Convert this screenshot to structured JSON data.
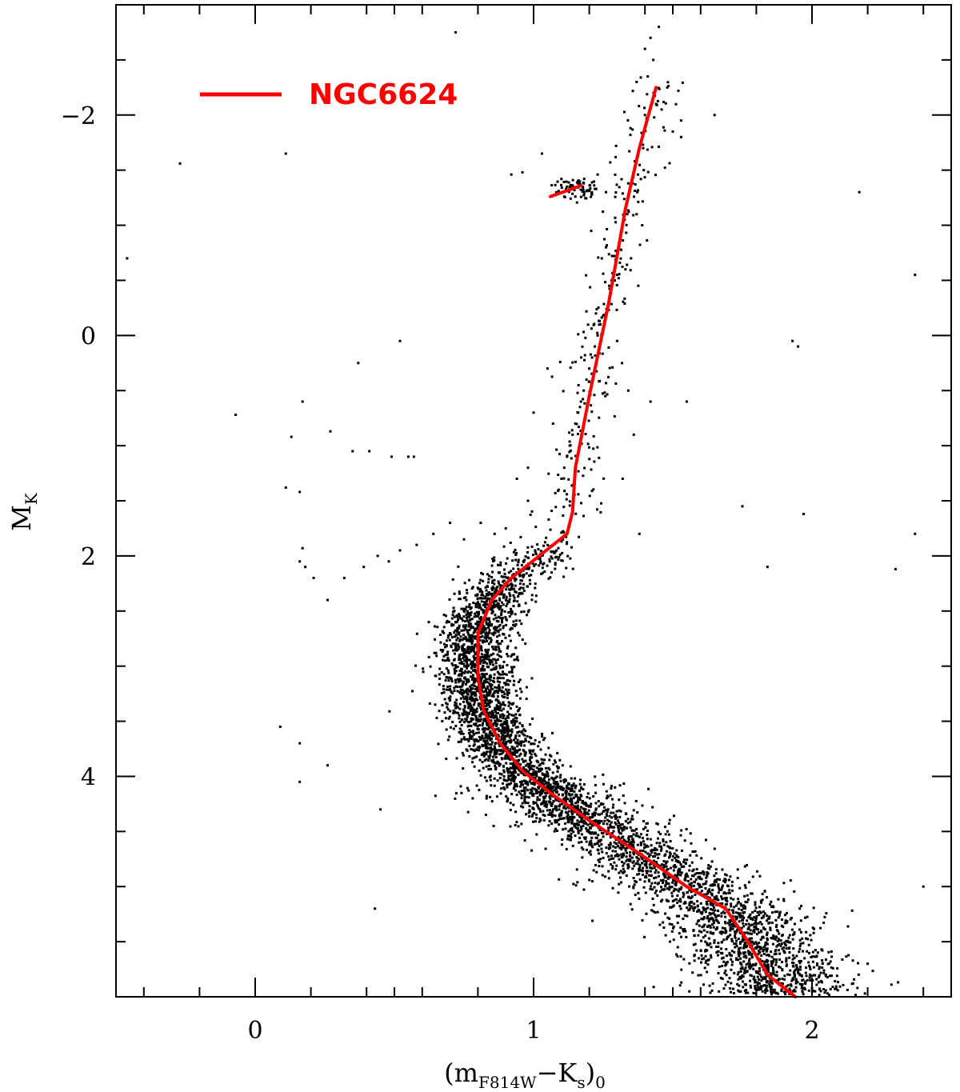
{
  "chart_data": {
    "type": "scatter",
    "title": "",
    "xlabel": {
      "main": "(m",
      "sub1": "F814W",
      "mid": "−K",
      "sub2": "s",
      "close": ")",
      "sub3": "0"
    },
    "ylabel": {
      "main": "M",
      "sub": "K"
    },
    "xlim": [
      -0.5,
      2.5
    ],
    "ylim": [
      6.0,
      -3.0
    ],
    "y_inverted": true,
    "x_ticks": [
      0,
      1,
      2
    ],
    "x_tick_labels": [
      "0",
      "1",
      "2"
    ],
    "y_ticks": [
      -2,
      0,
      2,
      4
    ],
    "y_tick_labels": [
      "−2",
      "0",
      "2",
      "4"
    ],
    "grid": false,
    "legend": {
      "position": "top-left",
      "entries": [
        {
          "name": "NGC6624",
          "color": "#ff0000"
        }
      ]
    },
    "scatter_color": "#000000",
    "scatter_description_regions": {
      "main_sequence_turnoff": {
        "x_center": 0.78,
        "y_center": 3.1
      },
      "lower_main_sequence": {
        "x_center": 1.6,
        "y_center": 5.0
      }
    },
    "series": [
      {
        "name": "NGC6624",
        "kind": "line",
        "color": "#ff0000",
        "x": [
          1.44,
          1.38,
          1.33,
          1.27,
          1.2,
          1.15,
          1.14,
          1.12,
          1.07,
          1.02,
          0.92,
          0.85,
          0.8,
          0.8,
          0.82,
          0.88,
          0.96,
          1.06,
          1.2,
          1.38,
          1.55,
          1.69,
          1.77,
          1.84,
          1.94
        ],
        "y": [
          -2.25,
          -1.7,
          -1.15,
          -0.3,
          0.55,
          1.2,
          1.6,
          1.8,
          1.9,
          2.0,
          2.2,
          2.4,
          2.7,
          3.1,
          3.4,
          3.7,
          3.95,
          4.15,
          4.4,
          4.7,
          5.0,
          5.2,
          5.5,
          5.8,
          6.0
        ]
      },
      {
        "name": "red-clump",
        "kind": "line",
        "color": "#ff0000",
        "x": [
          1.06,
          1.17
        ],
        "y": [
          -1.26,
          -1.36
        ]
      }
    ],
    "scatter_points": [
      [
        0.72,
        -2.75
      ],
      [
        1.42,
        -2.7
      ],
      [
        1.45,
        -2.8
      ],
      [
        1.4,
        -2.6
      ],
      [
        1.43,
        -2.5
      ],
      [
        1.41,
        -2.35
      ],
      [
        1.37,
        -2.3
      ],
      [
        1.44,
        -2.1
      ],
      [
        1.46,
        -2.05
      ],
      [
        1.48,
        -2.25
      ],
      [
        1.52,
        -2.22
      ],
      [
        1.5,
        -1.85
      ],
      [
        1.53,
        -1.8
      ],
      [
        1.4,
        -2.0
      ],
      [
        1.65,
        -2.0
      ],
      [
        1.53,
        -1.95
      ],
      [
        -0.27,
        -1.56
      ],
      [
        0.11,
        -1.65
      ],
      [
        0.96,
        -1.48
      ],
      [
        1.03,
        -1.65
      ],
      [
        0.92,
        -1.46
      ],
      [
        1.09,
        -1.31
      ],
      [
        1.12,
        -1.35
      ],
      [
        1.14,
        -1.34
      ],
      [
        1.16,
        -1.4
      ],
      [
        1.19,
        -1.31
      ],
      [
        1.22,
        -1.33
      ],
      [
        1.18,
        -1.38
      ],
      [
        1.1,
        -1.42
      ],
      [
        1.21,
        -1.28
      ],
      [
        1.23,
        -1.46
      ],
      [
        1.15,
        -1.26
      ],
      [
        1.11,
        -1.26
      ],
      [
        1.26,
        -1.3
      ],
      [
        1.34,
        -1.38
      ],
      [
        1.37,
        -1.1
      ],
      [
        1.39,
        -1.0
      ],
      [
        2.17,
        -1.3
      ],
      [
        1.26,
        -0.8
      ],
      [
        1.29,
        -0.72
      ],
      [
        1.31,
        -0.66
      ],
      [
        1.33,
        -0.6
      ],
      [
        1.3,
        -0.55
      ],
      [
        1.35,
        -0.7
      ],
      [
        1.25,
        -0.56
      ],
      [
        1.28,
        -0.5
      ],
      [
        -0.46,
        -0.7
      ],
      [
        2.37,
        -0.55
      ],
      [
        1.27,
        -0.3
      ],
      [
        1.24,
        -0.1
      ],
      [
        1.22,
        0.1
      ],
      [
        1.2,
        0.3
      ],
      [
        1.18,
        0.5
      ],
      [
        1.16,
        0.7
      ],
      [
        1.14,
        0.9
      ],
      [
        1.12,
        1.1
      ],
      [
        1.1,
        1.3
      ],
      [
        1.26,
        -0.2
      ],
      [
        1.23,
        0.0
      ],
      [
        1.21,
        0.2
      ],
      [
        1.19,
        0.4
      ],
      [
        1.17,
        0.6
      ],
      [
        1.15,
        0.8
      ],
      [
        1.13,
        1.0
      ],
      [
        1.11,
        1.2
      ],
      [
        1.09,
        1.4
      ],
      [
        1.3,
        0.05
      ],
      [
        1.05,
        0.3
      ],
      [
        1.07,
        0.8
      ],
      [
        1.0,
        0.7
      ],
      [
        0.98,
        1.2
      ],
      [
        0.94,
        1.3
      ],
      [
        0.98,
        1.5
      ],
      [
        1.34,
        0.5
      ],
      [
        1.36,
        0.9
      ],
      [
        1.32,
        1.3
      ],
      [
        1.38,
        1.8
      ],
      [
        1.42,
        0.6
      ],
      [
        0.52,
        0.05
      ],
      [
        0.37,
        0.25
      ],
      [
        -0.07,
        0.72
      ],
      [
        0.17,
        0.6
      ],
      [
        0.13,
        0.92
      ],
      [
        0.27,
        0.87
      ],
      [
        0.35,
        1.05
      ],
      [
        0.41,
        1.05
      ],
      [
        0.49,
        1.1
      ],
      [
        0.55,
        1.1
      ],
      [
        0.57,
        1.1
      ],
      [
        0.11,
        1.38
      ],
      [
        0.16,
        1.42
      ],
      [
        0.17,
        1.93
      ],
      [
        0.16,
        2.05
      ],
      [
        0.18,
        2.1
      ],
      [
        0.21,
        2.2
      ],
      [
        0.26,
        2.4
      ],
      [
        0.32,
        2.2
      ],
      [
        0.39,
        2.1
      ],
      [
        0.44,
        2.0
      ],
      [
        0.48,
        2.05
      ],
      [
        0.52,
        1.95
      ],
      [
        0.58,
        1.9
      ],
      [
        0.64,
        1.8
      ],
      [
        0.7,
        1.7
      ],
      [
        0.75,
        1.85
      ],
      [
        0.81,
        1.7
      ],
      [
        0.86,
        1.8
      ],
      [
        0.9,
        1.75
      ],
      [
        1.75,
        1.55
      ],
      [
        1.84,
        2.1
      ],
      [
        1.97,
        1.62
      ],
      [
        2.3,
        2.12
      ],
      [
        2.37,
        1.8
      ],
      [
        2.5,
        1.9
      ],
      [
        1.93,
        0.05
      ],
      [
        1.95,
        0.1
      ],
      [
        1.55,
        0.6
      ],
      [
        0.45,
        4.3
      ],
      [
        0.26,
        3.9
      ],
      [
        0.09,
        3.55
      ],
      [
        0.16,
        3.7
      ],
      [
        0.16,
        4.05
      ],
      [
        0.43,
        5.2
      ],
      [
        2.05,
        5.8
      ],
      [
        2.2,
        5.7
      ],
      [
        2.4,
        5.0
      ]
    ]
  }
}
